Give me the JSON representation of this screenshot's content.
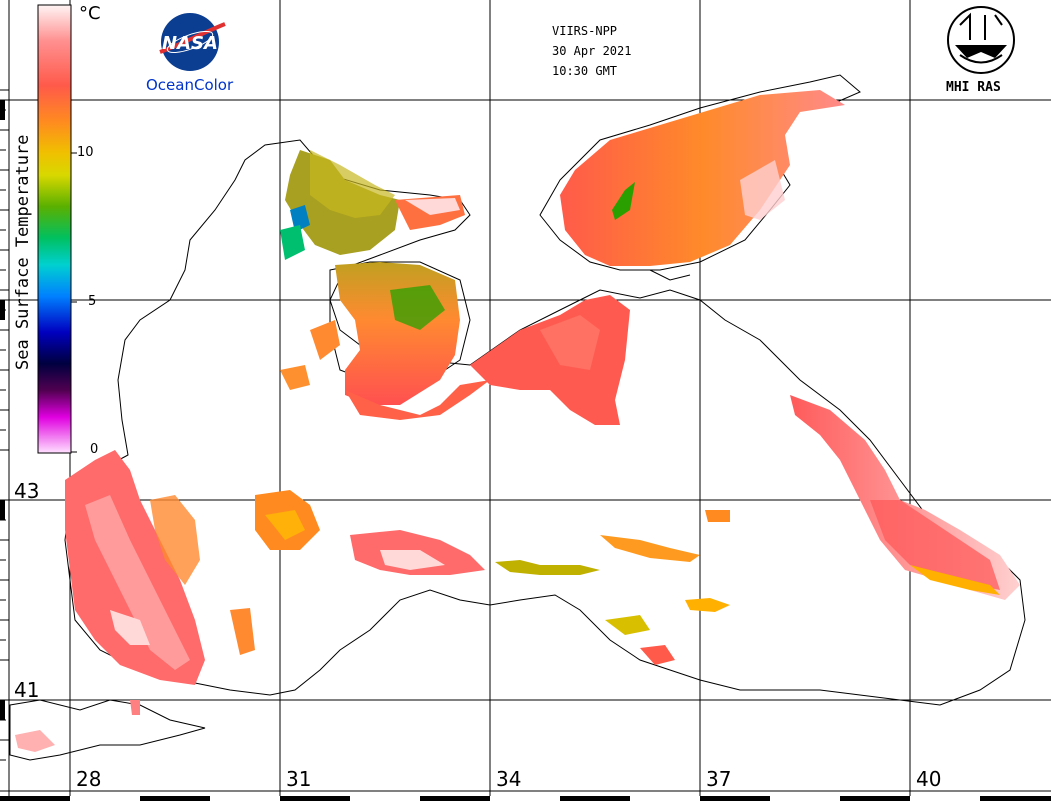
{
  "header": {
    "sensor": "VIIRS-NPP",
    "date": "30 Apr 2021",
    "time": "10:30 GMT"
  },
  "logos": {
    "nasa_text": "NASA",
    "oceancolor_text": "OceanColor",
    "mhi_text": "MHI RAS"
  },
  "colorbar": {
    "title": "Sea Surface Temperature",
    "unit": "°C",
    "ticks": [
      "10",
      "5",
      "0"
    ],
    "colors": [
      "#fde8ec",
      "#ff8080",
      "#ff5a4a",
      "#ff7f2a",
      "#ffb000",
      "#e8e000",
      "#9ec800",
      "#2aa000",
      "#00d080",
      "#00d0e8",
      "#0060ff",
      "#0000c0",
      "#000060",
      "#600060",
      "#ff00ff",
      "#ffd0ff"
    ]
  },
  "grid": {
    "lat_labels": [
      "43",
      "41"
    ],
    "lon_labels": [
      "28",
      "31",
      "34",
      "37",
      "40"
    ]
  }
}
